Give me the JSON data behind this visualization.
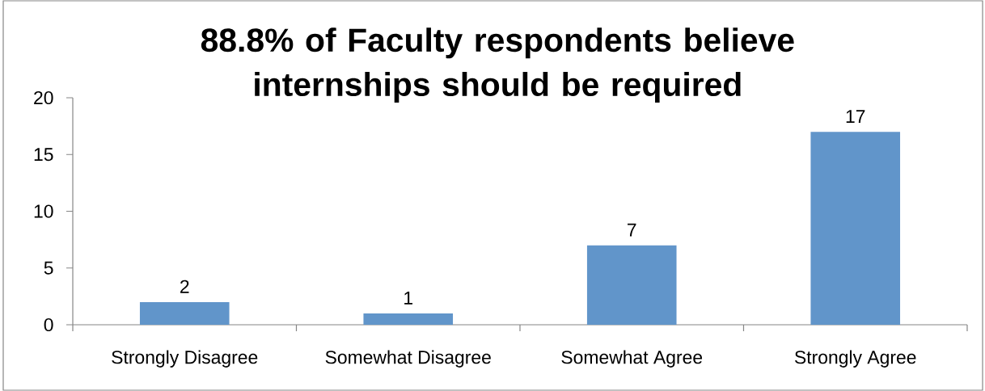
{
  "chart_data": {
    "type": "bar",
    "title": "88.8% of Faculty respondents believe internships should be required",
    "categories": [
      "Strongly Disagree",
      "Somewhat Disagree",
      "Somewhat Agree",
      "Strongly Agree"
    ],
    "values": [
      2,
      1,
      7,
      17
    ],
    "color": "#6195ca",
    "ylim": [
      0,
      20
    ],
    "yticks": [
      0,
      5,
      10,
      15,
      20
    ],
    "data_labels": true
  }
}
